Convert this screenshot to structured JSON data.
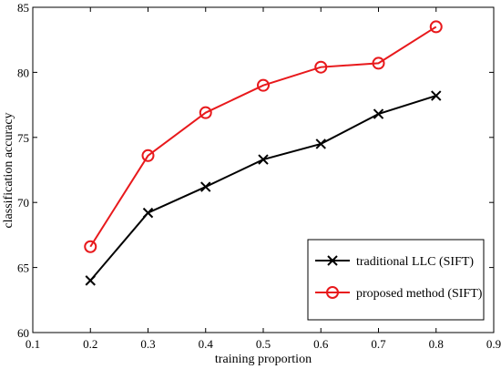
{
  "chart_data": {
    "type": "line",
    "xlabel": "training proportion",
    "ylabel": "classification accuracy",
    "xlim": [
      0.1,
      0.9
    ],
    "ylim": [
      60,
      85
    ],
    "xticks": [
      0.1,
      0.2,
      0.3,
      0.4,
      0.5,
      0.6,
      0.7,
      0.8,
      0.9
    ],
    "yticks": [
      60,
      65,
      70,
      75,
      80,
      85
    ],
    "xtick_labels": [
      "0.1",
      "0.2",
      "0.3",
      "0.4",
      "0.5",
      "0.6",
      "0.7",
      "0.8",
      "0.9"
    ],
    "ytick_labels": [
      "60",
      "65",
      "70",
      "75",
      "80",
      "85"
    ],
    "grid": false,
    "legend_position": "bottom-right",
    "series": [
      {
        "name": "traditional LLC (SIFT)",
        "color": "#000000",
        "marker": "x",
        "x": [
          0.2,
          0.3,
          0.4,
          0.5,
          0.6,
          0.7,
          0.8
        ],
        "y": [
          64.0,
          69.2,
          71.2,
          73.3,
          74.5,
          76.8,
          78.2
        ]
      },
      {
        "name": "proposed method (SIFT)",
        "color": "#e8191c",
        "marker": "circle",
        "x": [
          0.2,
          0.3,
          0.4,
          0.5,
          0.6,
          0.7,
          0.8
        ],
        "y": [
          66.6,
          73.6,
          76.9,
          79.0,
          80.4,
          80.7,
          83.5
        ]
      }
    ]
  }
}
